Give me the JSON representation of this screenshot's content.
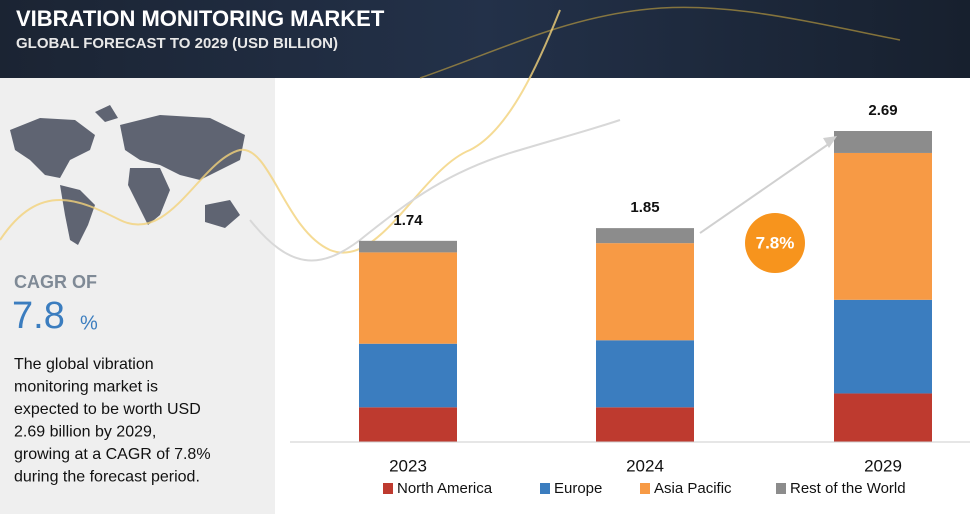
{
  "header": {
    "title": "VIBRATION MONITORING MARKET",
    "subtitle": "GLOBAL FORECAST TO 2029 (USD BILLION)"
  },
  "sidebar": {
    "cagr_label": "CAGR OF",
    "cagr_value": "7.8",
    "cagr_unit": "%",
    "description": [
      "The global vibration",
      "monitoring market is",
      "expected to be worth USD",
      "2.69 billion  by 2029,",
      "growing at a CAGR of 7.8%",
      "during the forecast period."
    ]
  },
  "chart_data": {
    "type": "stacked_bar",
    "categories": [
      "2023",
      "2024",
      "2029"
    ],
    "totals": [
      1.74,
      1.85,
      2.69
    ],
    "series": [
      {
        "name": "North America",
        "color": "#be3a2f",
        "values": [
          0.3,
          0.3,
          0.42
        ]
      },
      {
        "name": "Europe",
        "color": "#3b7dbf",
        "values": [
          0.55,
          0.58,
          0.81
        ]
      },
      {
        "name": "Asia Pacific",
        "color": "#f79a45",
        "values": [
          0.79,
          0.84,
          1.27
        ]
      },
      {
        "name": "Rest of the World",
        "color": "#8c8c8c",
        "values": [
          0.1,
          0.13,
          0.19
        ]
      }
    ],
    "annotation": "7.8%",
    "legend": "bottom"
  }
}
